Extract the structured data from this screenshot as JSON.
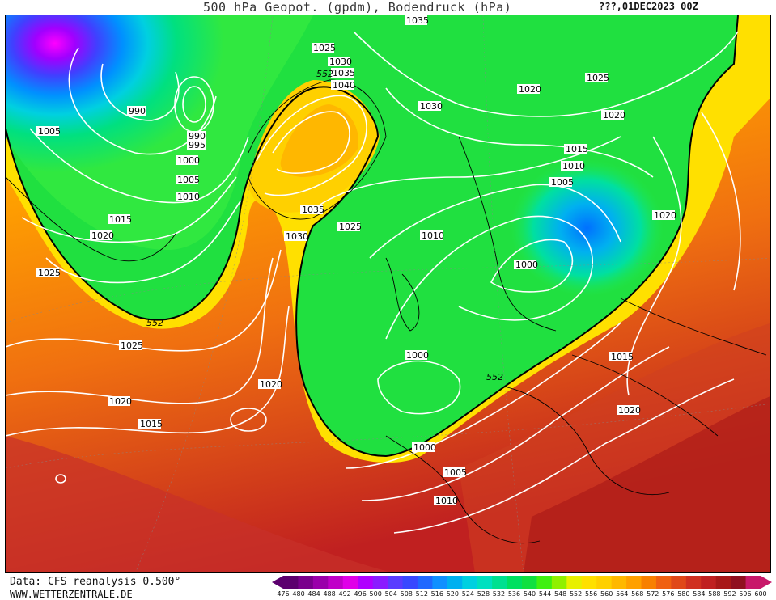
{
  "header": {
    "title": "500 hPa Geopot. (gpdm), Bodendruck (hPa)",
    "runtime": "???,01DEC2023 00Z"
  },
  "footer": {
    "source": "Data: CFS reanalysis 0.500°",
    "site": "WWW.WETTERZENTRALE.DE"
  },
  "legend": {
    "ticks": [
      "476",
      "480",
      "484",
      "488",
      "492",
      "496",
      "500",
      "504",
      "508",
      "512",
      "516",
      "520",
      "524",
      "528",
      "532",
      "536",
      "540",
      "544",
      "548",
      "552",
      "556",
      "560",
      "564",
      "568",
      "572",
      "576",
      "580",
      "584",
      "588",
      "592",
      "596",
      "600"
    ],
    "colors": [
      "#5c006e",
      "#7a008c",
      "#9a00aa",
      "#c000c8",
      "#e000e8",
      "#b000ff",
      "#8a1cff",
      "#5a3cff",
      "#3848ff",
      "#2068ff",
      "#1090ff",
      "#00b0f0",
      "#00d0e0",
      "#00e0c0",
      "#00e090",
      "#00e060",
      "#10e040",
      "#40f010",
      "#90f000",
      "#e8f000",
      "#ffe000",
      "#ffd000",
      "#ffb800",
      "#ffa000",
      "#f88000",
      "#f06010",
      "#e04818",
      "#d03020",
      "#c02020",
      "#a81818",
      "#901020",
      "#c8186a"
    ]
  },
  "map": {
    "isobar_labels": [
      "1035",
      "1025",
      "1030",
      "1035",
      "1040",
      "1030",
      "1020",
      "1025",
      "1020",
      "990",
      "990",
      "995",
      "1005",
      "1000",
      "1005",
      "1010",
      "1015",
      "1020",
      "1035",
      "1030",
      "1025",
      "1015",
      "1010",
      "1005",
      "1010",
      "1020",
      "1000",
      "1025",
      "1025",
      "1020",
      "1015",
      "1000",
      "1015",
      "1020",
      "1000",
      "1005",
      "1010",
      "1020"
    ],
    "contour_labels": [
      "552",
      "552",
      "552",
      "552"
    ]
  }
}
